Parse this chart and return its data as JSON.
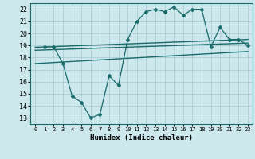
{
  "xlabel": "Humidex (Indice chaleur)",
  "ylabel": "",
  "xlim": [
    -0.5,
    23.5
  ],
  "ylim": [
    12.5,
    22.5
  ],
  "xticks": [
    0,
    1,
    2,
    3,
    4,
    5,
    6,
    7,
    8,
    9,
    10,
    11,
    12,
    13,
    14,
    15,
    16,
    17,
    18,
    19,
    20,
    21,
    22,
    23
  ],
  "yticks": [
    13,
    14,
    15,
    16,
    17,
    18,
    19,
    20,
    21,
    22
  ],
  "bg_color": "#cce8ec",
  "grid_color": "#aacdd4",
  "line_color": "#1a6b6b",
  "curve_x": [
    1,
    2,
    3,
    4,
    5,
    6,
    7,
    8,
    9,
    10,
    11,
    12,
    13,
    14,
    15,
    16,
    17,
    18,
    19,
    20,
    21,
    22,
    23
  ],
  "curve_y": [
    18.9,
    18.9,
    17.5,
    14.8,
    14.3,
    13.0,
    13.3,
    16.5,
    15.7,
    19.5,
    21.0,
    21.8,
    22.0,
    21.8,
    22.2,
    21.5,
    22.0,
    22.0,
    18.9,
    20.5,
    19.5,
    19.5,
    19.0
  ],
  "trend1_x": [
    0,
    23
  ],
  "trend1_y": [
    18.85,
    19.5
  ],
  "trend2_x": [
    0,
    23
  ],
  "trend2_y": [
    18.6,
    19.2
  ],
  "trend3_x": [
    0,
    23
  ],
  "trend3_y": [
    17.5,
    18.5
  ]
}
